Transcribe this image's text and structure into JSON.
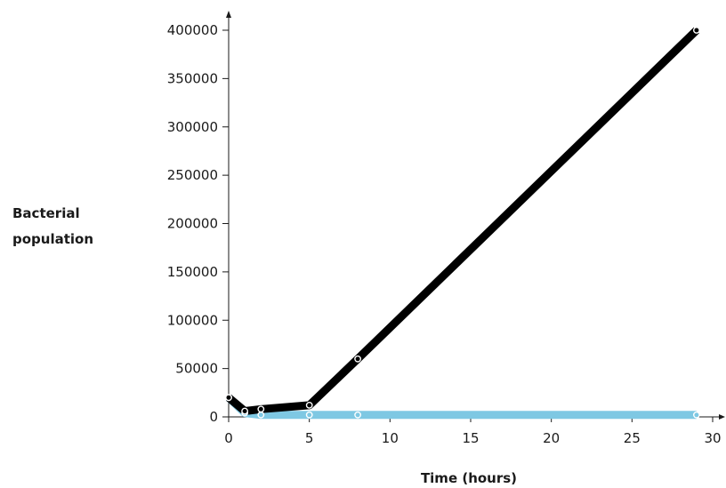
{
  "chart_data": {
    "type": "line",
    "title": "",
    "xlabel": "Time (hours)",
    "ylabel_lines": [
      "Bacterial",
      "population"
    ],
    "xlim": [
      0,
      30
    ],
    "ylim": [
      0,
      400000
    ],
    "x_ticks": [
      0,
      5,
      10,
      15,
      20,
      25,
      30
    ],
    "y_ticks": [
      0,
      50000,
      100000,
      150000,
      200000,
      250000,
      300000,
      350000,
      400000
    ],
    "grid": false,
    "legend": "none",
    "series": [
      {
        "color": "#7ec8e3",
        "points": [
          {
            "x": 0,
            "y": 20000
          },
          {
            "x": 1,
            "y": 4000
          },
          {
            "x": 2,
            "y": 2000
          },
          {
            "x": 5,
            "y": 2000
          },
          {
            "x": 8,
            "y": 2000
          },
          {
            "x": 29,
            "y": 2000
          }
        ]
      },
      {
        "color": "#000000",
        "points": [
          {
            "x": 0,
            "y": 20000
          },
          {
            "x": 1,
            "y": 6000
          },
          {
            "x": 2,
            "y": 8000
          },
          {
            "x": 5,
            "y": 12000
          },
          {
            "x": 8,
            "y": 60000
          },
          {
            "x": 29,
            "y": 400000
          }
        ]
      }
    ]
  }
}
